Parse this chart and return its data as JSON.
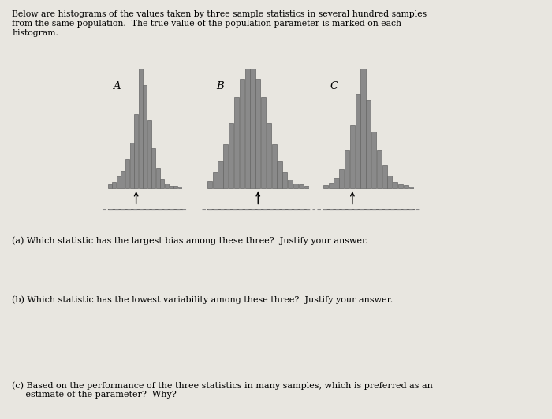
{
  "background_color": "#d8d4cc",
  "page_bg": "#e8e6e0",
  "title_text": "Below are histograms of the values taken by three sample statistics in several hundred samples\nfrom the same population.  The true value of the population parameter is marked on each\nhistogram.",
  "question_a": "(a) Which statistic has the largest bias among these three?  Justify your answer.",
  "question_b": "(b) Which statistic has the lowest variability among these three?  Justify your answer.",
  "question_c": "(c) Based on the performance of the three statistics in many samples, which is preferred as an\n     estimate of the parameter?  Why?",
  "hist_bar_color": "#8a8a8a",
  "hist_edge_color": "#666666",
  "label_A": "A",
  "label_B": "B",
  "label_C": "C",
  "histA_heights": [
    0.3,
    0.5,
    1.0,
    1.5,
    2.5,
    4.0,
    6.5,
    10.5,
    9.0,
    6.0,
    3.5,
    1.8,
    0.8,
    0.4,
    0.2,
    0.15,
    0.1
  ],
  "histA_true_param": 6,
  "histB_heights": [
    0.3,
    0.7,
    1.2,
    2.0,
    3.0,
    4.2,
    5.0,
    5.5,
    5.5,
    5.0,
    4.2,
    3.0,
    2.0,
    1.2,
    0.7,
    0.4,
    0.2,
    0.15,
    0.1
  ],
  "histB_true_param": 9,
  "histC_heights": [
    0.2,
    0.4,
    0.8,
    1.5,
    3.0,
    5.0,
    7.5,
    9.5,
    7.0,
    4.5,
    3.0,
    1.8,
    1.0,
    0.5,
    0.3,
    0.2,
    0.1
  ],
  "histC_true_param": 5
}
